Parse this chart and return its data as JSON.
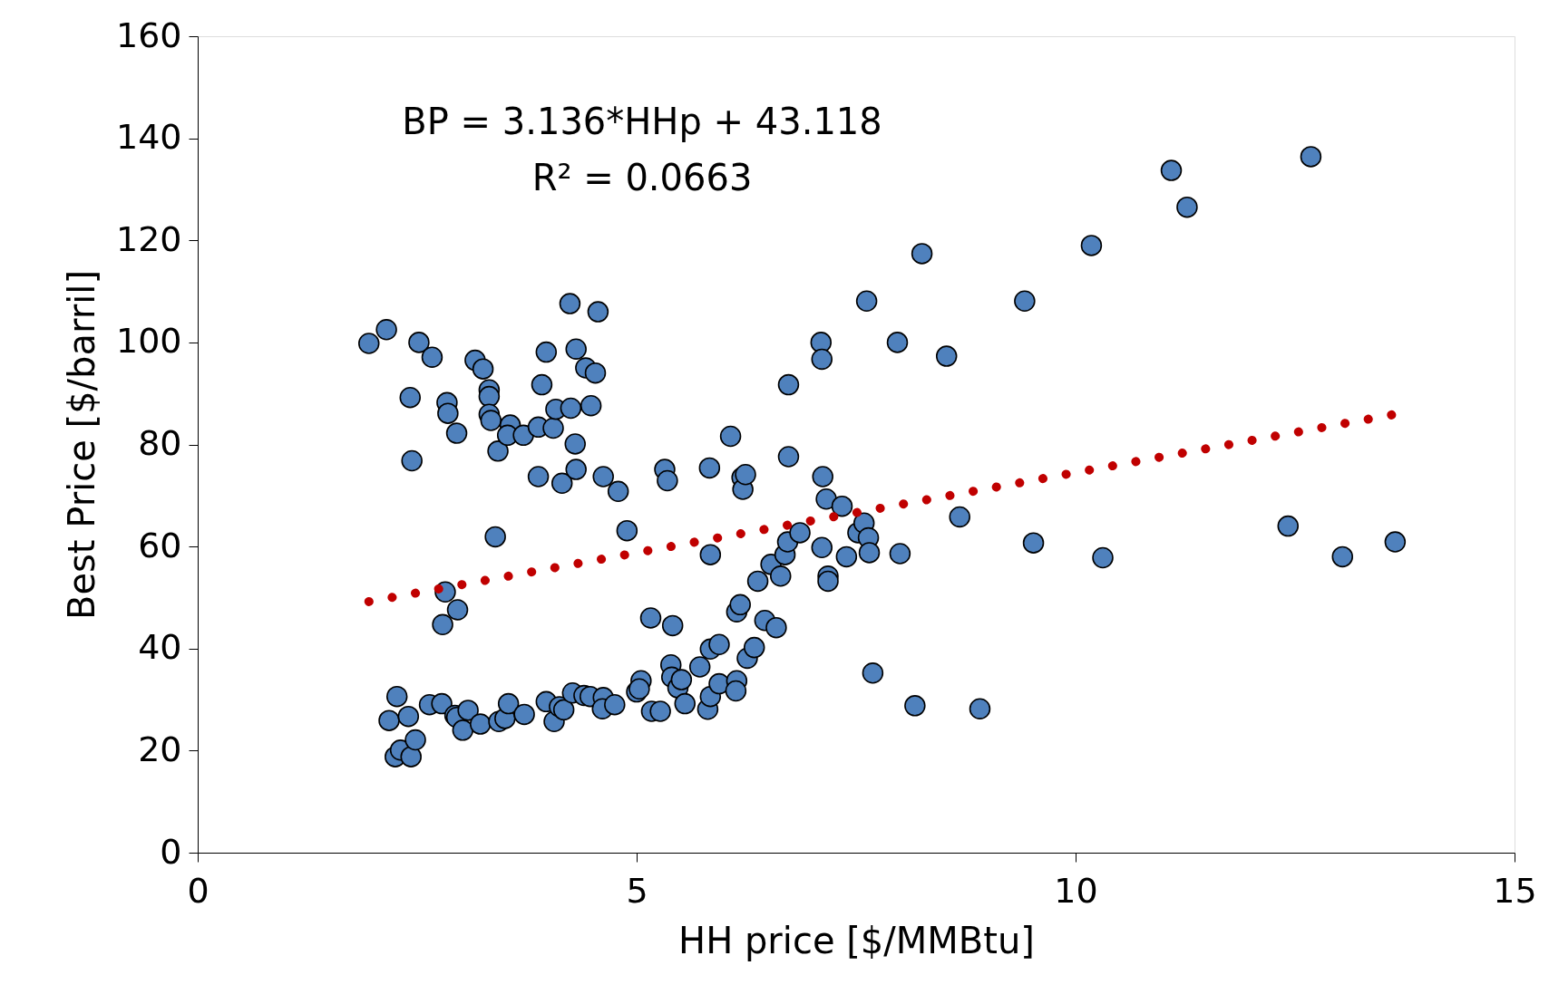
{
  "chart_data": {
    "type": "scatter",
    "xlabel": "HH price [$/MMBtu]",
    "ylabel": "Best Price [$/barril]",
    "annotations": [
      "BP = 3.136*HHp + 43.118",
      "R² = 0.0663"
    ],
    "xlim": [
      0,
      15
    ],
    "xticks": [
      0,
      5,
      10,
      15
    ],
    "ylim": [
      0,
      160
    ],
    "yticks": [
      0,
      20,
      40,
      60,
      80,
      100,
      120,
      140,
      160
    ],
    "grid": false,
    "marker": "circle",
    "series": [
      {
        "type": "scatter",
        "color": "#4f81bd",
        "x": [
          1.95,
          2.15,
          2.52,
          2.67,
          2.42,
          2.44,
          2.84,
          2.85,
          2.95,
          3.16,
          3.25,
          3.32,
          3.32,
          3.32,
          3.34,
          3.42,
          3.56,
          3.53,
          3.71,
          3.88,
          3.92,
          3.97,
          4.05,
          4.08,
          4.15,
          3.88,
          4.24,
          4.25,
          4.3,
          4.31,
          4.31,
          4.42,
          4.48,
          4.53,
          4.56,
          4.62,
          4.79,
          4.89,
          3.39,
          2.82,
          2.79,
          2.96,
          2.27,
          2.18,
          2.4,
          2.25,
          2.31,
          2.43,
          2.48,
          2.64,
          2.78,
          2.93,
          2.95,
          3.02,
          3.08,
          3.22,
          3.43,
          3.5,
          3.54,
          3.72,
          3.97,
          4.06,
          4.12,
          4.17,
          4.27,
          4.4,
          4.47,
          4.62,
          4.61,
          4.75,
          5.0,
          5.05,
          5.03,
          5.16,
          5.17,
          5.27,
          5.32,
          5.35,
          5.41,
          5.39,
          5.4,
          5.47,
          5.51,
          5.55,
          5.72,
          5.81,
          5.84,
          5.84,
          5.83,
          5.84,
          5.94,
          5.94,
          6.07,
          6.14,
          6.13,
          6.14,
          6.18,
          6.2,
          6.21,
          6.24,
          6.26,
          6.34,
          6.38,
          6.46,
          6.59,
          6.53,
          6.64,
          6.69,
          6.72,
          6.73,
          6.73,
          6.86,
          7.1,
          7.11,
          7.11,
          7.12,
          7.16,
          7.18,
          7.18,
          7.34,
          7.39,
          7.52,
          7.59,
          7.64,
          7.65,
          7.62,
          7.69,
          7.97,
          8.0,
          8.17,
          8.25,
          8.53,
          8.68,
          8.91,
          9.42,
          9.52,
          10.18,
          10.31,
          11.09,
          11.27,
          12.42,
          12.68,
          13.04,
          13.64
        ],
        "values": [
          99.8,
          102.5,
          100,
          97.1,
          89.2,
          76.8,
          88.2,
          86.1,
          82.2,
          96.5,
          94.8,
          90.7,
          89.4,
          85.9,
          84.7,
          78.7,
          83.8,
          81.8,
          81.8,
          83.4,
          91.7,
          98.1,
          83.2,
          86.9,
          72.4,
          73.7,
          107.6,
          87.1,
          80.1,
          75.1,
          98.7,
          95,
          87.6,
          94,
          106,
          73.7,
          70.8,
          63.1,
          61.9,
          51.1,
          44.7,
          47.6,
          30.6,
          25.9,
          26.7,
          18.8,
          20.1,
          18.8,
          22.1,
          29,
          29.2,
          26.9,
          26.5,
          24,
          27.9,
          25.2,
          25.7,
          26.3,
          29.2,
          27.1,
          29.6,
          25.7,
          28.6,
          28,
          31.3,
          30.8,
          30.6,
          30.4,
          28.2,
          29,
          31.5,
          33.7,
          32.1,
          46,
          27.7,
          27.7,
          75.1,
          72.9,
          44.5,
          36.8,
          34.4,
          32.3,
          33.9,
          29.2,
          36.4,
          28.1,
          30.6,
          39.9,
          75.4,
          58.4,
          40.8,
          33.1,
          81.6,
          33.7,
          31.7,
          47.2,
          48.6,
          73.5,
          71.2,
          74.1,
          38.1,
          40.2,
          53.2,
          45.5,
          44.1,
          56.5,
          54.2,
          58.4,
          60.9,
          91.7,
          77.6,
          62.7,
          100,
          96.7,
          59.8,
          73.7,
          69.3,
          54.2,
          53.2,
          67.9,
          58,
          62.7,
          64.6,
          61.7,
          58.8,
          108.1,
          35.2,
          100,
          58.6,
          28.8,
          117.4,
          97.3,
          65.8,
          28.2,
          108.1,
          60.7,
          119,
          57.8,
          133.7,
          126.5,
          64,
          136.4,
          58,
          60.9
        ]
      },
      {
        "type": "line",
        "color": "#c00000",
        "line_style": "dotted",
        "marker": "none",
        "x": [
          1.95,
          13.6
        ],
        "values": [
          49.2,
          85.8
        ]
      }
    ]
  }
}
